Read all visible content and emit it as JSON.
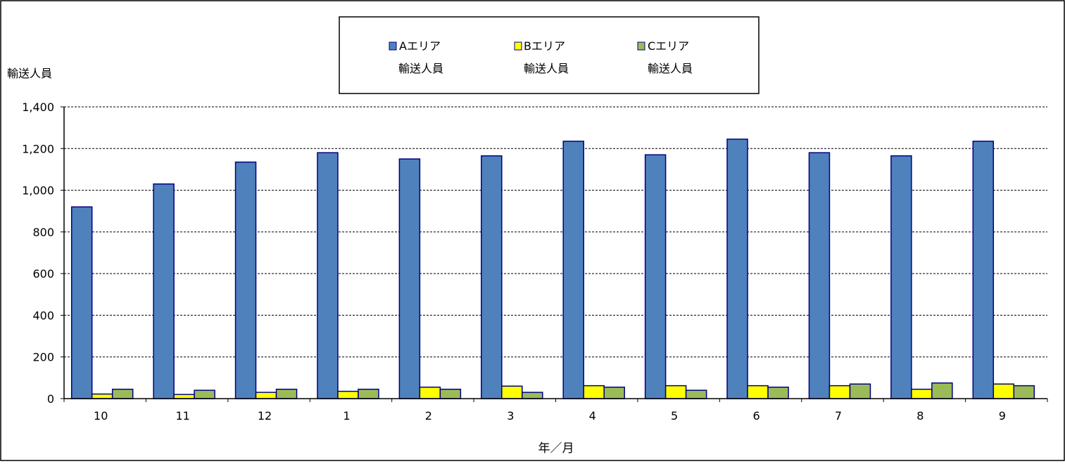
{
  "chart_data": {
    "type": "bar",
    "title": "",
    "xlabel": "年／月",
    "ylabel": "輸送人員",
    "categories": [
      "10",
      "11",
      "12",
      "1",
      "2",
      "3",
      "4",
      "5",
      "6",
      "7",
      "8",
      "9"
    ],
    "series": [
      {
        "name_line1": "Aエリア",
        "name_line2": "輸送人員",
        "color": "#4f81bd",
        "values": [
          920,
          1030,
          1135,
          1180,
          1150,
          1165,
          1235,
          1170,
          1245,
          1180,
          1165,
          1235
        ]
      },
      {
        "name_line1": "Bエリア",
        "name_line2": "輸送人員",
        "color": "#ffff00",
        "values": [
          22,
          20,
          30,
          35,
          55,
          60,
          62,
          62,
          62,
          62,
          45,
          70
        ]
      },
      {
        "name_line1": "Cエリア",
        "name_line2": "輸送人員",
        "color": "#9bbb59",
        "values": [
          45,
          40,
          45,
          45,
          45,
          30,
          55,
          40,
          55,
          70,
          75,
          62
        ]
      }
    ],
    "ylim": [
      0,
      1400
    ],
    "yticks": [
      "0",
      "200",
      "400",
      "600",
      "800",
      "1,000",
      "1,200",
      "1,400"
    ],
    "ytick_values": [
      0,
      200,
      400,
      600,
      800,
      1000,
      1200,
      1400
    ],
    "grid": true,
    "legend_position": "top-center",
    "bar_outline_color": "#000080"
  }
}
